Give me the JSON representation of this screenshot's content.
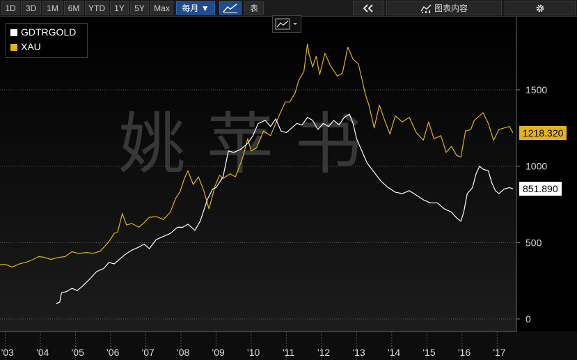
{
  "toolbar": {
    "periods": [
      "1D",
      "3D",
      "1M",
      "6M",
      "YTD",
      "1Y",
      "5Y",
      "Max"
    ],
    "frequency_label": "每月 ▼",
    "table_label": "表",
    "chart_content_label": "图表内容"
  },
  "watermark": "姚 苹 书",
  "colors": {
    "background": "#000000",
    "gdtrgold": "#ffffff",
    "xau": "#e2b31d",
    "grid": "#555555",
    "active": "#1f4c8f"
  },
  "chart_data": {
    "type": "line",
    "title": "",
    "xlabel": "",
    "ylabel": "",
    "ylim": [
      -20,
      1850
    ],
    "y_ticks": [
      0,
      500,
      1000,
      1500
    ],
    "x_tick_labels": [
      "'03",
      "'04",
      "'05",
      "'06",
      "'07",
      "'08",
      "'09",
      "'10",
      "'11",
      "'12",
      "'13",
      "'14",
      "'15",
      "'16",
      "'17"
    ],
    "grid": true,
    "legend_position": "top-left",
    "last_value_labels": {
      "XAU": "1218.320",
      "GDTRGOLD": "851.890"
    },
    "series": [
      {
        "name": "XAU",
        "color": "#e2b31d",
        "points": [
          [
            2002.85,
            355
          ],
          [
            2003.0,
            357
          ],
          [
            2003.2,
            340
          ],
          [
            2003.4,
            360
          ],
          [
            2003.6,
            372
          ],
          [
            2003.8,
            390
          ],
          [
            2003.95,
            408
          ],
          [
            2004.1,
            404
          ],
          [
            2004.3,
            390
          ],
          [
            2004.5,
            402
          ],
          [
            2004.7,
            408
          ],
          [
            2004.9,
            440
          ],
          [
            2005.1,
            428
          ],
          [
            2005.3,
            435
          ],
          [
            2005.5,
            430
          ],
          [
            2005.7,
            443
          ],
          [
            2005.9,
            493
          ],
          [
            2005.97,
            513
          ],
          [
            2006.1,
            560
          ],
          [
            2006.2,
            570
          ],
          [
            2006.33,
            690
          ],
          [
            2006.45,
            615
          ],
          [
            2006.6,
            625
          ],
          [
            2006.8,
            600
          ],
          [
            2006.95,
            630
          ],
          [
            2007.1,
            665
          ],
          [
            2007.3,
            670
          ],
          [
            2007.5,
            650
          ],
          [
            2007.7,
            700
          ],
          [
            2007.85,
            790
          ],
          [
            2007.97,
            830
          ],
          [
            2008.1,
            920
          ],
          [
            2008.2,
            970
          ],
          [
            2008.35,
            880
          ],
          [
            2008.5,
            930
          ],
          [
            2008.65,
            840
          ],
          [
            2008.8,
            720
          ],
          [
            2008.97,
            870
          ],
          [
            2009.1,
            940
          ],
          [
            2009.2,
            920
          ],
          [
            2009.4,
            950
          ],
          [
            2009.55,
            930
          ],
          [
            2009.75,
            1050
          ],
          [
            2009.9,
            1180
          ],
          [
            2010.0,
            1100
          ],
          [
            2010.15,
            1120
          ],
          [
            2010.35,
            1230
          ],
          [
            2010.55,
            1200
          ],
          [
            2010.7,
            1280
          ],
          [
            2010.85,
            1360
          ],
          [
            2010.97,
            1420
          ],
          [
            2011.1,
            1420
          ],
          [
            2011.25,
            1480
          ],
          [
            2011.35,
            1560
          ],
          [
            2011.5,
            1620
          ],
          [
            2011.6,
            1800
          ],
          [
            2011.65,
            1730
          ],
          [
            2011.75,
            1650
          ],
          [
            2011.85,
            1720
          ],
          [
            2011.95,
            1600
          ],
          [
            2012.1,
            1740
          ],
          [
            2012.25,
            1660
          ],
          [
            2012.45,
            1590
          ],
          [
            2012.6,
            1610
          ],
          [
            2012.75,
            1780
          ],
          [
            2012.9,
            1700
          ],
          [
            2013.05,
            1670
          ],
          [
            2013.25,
            1470
          ],
          [
            2013.35,
            1400
          ],
          [
            2013.5,
            1250
          ],
          [
            2013.65,
            1400
          ],
          [
            2013.8,
            1300
          ],
          [
            2013.95,
            1210
          ],
          [
            2014.1,
            1330
          ],
          [
            2014.3,
            1290
          ],
          [
            2014.5,
            1320
          ],
          [
            2014.7,
            1220
          ],
          [
            2014.9,
            1170
          ],
          [
            2015.05,
            1290
          ],
          [
            2015.2,
            1180
          ],
          [
            2015.4,
            1200
          ],
          [
            2015.55,
            1090
          ],
          [
            2015.7,
            1130
          ],
          [
            2015.85,
            1070
          ],
          [
            2015.97,
            1060
          ],
          [
            2016.1,
            1230
          ],
          [
            2016.25,
            1240
          ],
          [
            2016.35,
            1300
          ],
          [
            2016.5,
            1330
          ],
          [
            2016.6,
            1350
          ],
          [
            2016.75,
            1280
          ],
          [
            2016.9,
            1170
          ],
          [
            2017.05,
            1240
          ],
          [
            2017.2,
            1250
          ],
          [
            2017.35,
            1260
          ],
          [
            2017.45,
            1218.32
          ]
        ]
      },
      {
        "name": "GDTRGOLD",
        "color": "#ffffff",
        "points": [
          [
            2004.45,
            100
          ],
          [
            2004.55,
            110
          ],
          [
            2004.6,
            170
          ],
          [
            2004.75,
            180
          ],
          [
            2004.9,
            200
          ],
          [
            2005.05,
            185
          ],
          [
            2005.2,
            215
          ],
          [
            2005.4,
            260
          ],
          [
            2005.6,
            310
          ],
          [
            2005.8,
            330
          ],
          [
            2005.95,
            370
          ],
          [
            2006.1,
            360
          ],
          [
            2006.3,
            400
          ],
          [
            2006.4,
            420
          ],
          [
            2006.6,
            450
          ],
          [
            2006.8,
            470
          ],
          [
            2006.95,
            490
          ],
          [
            2007.1,
            460
          ],
          [
            2007.3,
            520
          ],
          [
            2007.5,
            540
          ],
          [
            2007.7,
            560
          ],
          [
            2007.9,
            600
          ],
          [
            2008.05,
            600
          ],
          [
            2008.2,
            620
          ],
          [
            2008.4,
            580
          ],
          [
            2008.55,
            640
          ],
          [
            2008.75,
            780
          ],
          [
            2008.9,
            850
          ],
          [
            2009.0,
            860
          ],
          [
            2009.2,
            930
          ],
          [
            2009.35,
            1100
          ],
          [
            2009.5,
            1090
          ],
          [
            2009.7,
            1110
          ],
          [
            2009.9,
            1150
          ],
          [
            2010.05,
            1200
          ],
          [
            2010.2,
            1280
          ],
          [
            2010.4,
            1300
          ],
          [
            2010.55,
            1260
          ],
          [
            2010.7,
            1310
          ],
          [
            2010.85,
            1230
          ],
          [
            2011.0,
            1220
          ],
          [
            2011.15,
            1250
          ],
          [
            2011.3,
            1280
          ],
          [
            2011.45,
            1270
          ],
          [
            2011.6,
            1320
          ],
          [
            2011.75,
            1300
          ],
          [
            2011.9,
            1240
          ],
          [
            2012.05,
            1280
          ],
          [
            2012.2,
            1260
          ],
          [
            2012.35,
            1300
          ],
          [
            2012.5,
            1270
          ],
          [
            2012.65,
            1320
          ],
          [
            2012.8,
            1340
          ],
          [
            2012.9,
            1280
          ],
          [
            2013.0,
            1180
          ],
          [
            2013.15,
            1100
          ],
          [
            2013.3,
            1020
          ],
          [
            2013.5,
            960
          ],
          [
            2013.7,
            900
          ],
          [
            2013.9,
            860
          ],
          [
            2014.1,
            830
          ],
          [
            2014.3,
            820
          ],
          [
            2014.5,
            840
          ],
          [
            2014.7,
            810
          ],
          [
            2014.9,
            780
          ],
          [
            2015.1,
            760
          ],
          [
            2015.3,
            760
          ],
          [
            2015.5,
            720
          ],
          [
            2015.7,
            700
          ],
          [
            2015.85,
            660
          ],
          [
            2015.97,
            640
          ],
          [
            2016.05,
            700
          ],
          [
            2016.15,
            820
          ],
          [
            2016.3,
            860
          ],
          [
            2016.4,
            950
          ],
          [
            2016.5,
            1000
          ],
          [
            2016.6,
            980
          ],
          [
            2016.75,
            970
          ],
          [
            2016.85,
            890
          ],
          [
            2016.95,
            840
          ],
          [
            2017.05,
            820
          ],
          [
            2017.2,
            850
          ],
          [
            2017.35,
            860
          ],
          [
            2017.45,
            851.89
          ]
        ]
      }
    ]
  }
}
